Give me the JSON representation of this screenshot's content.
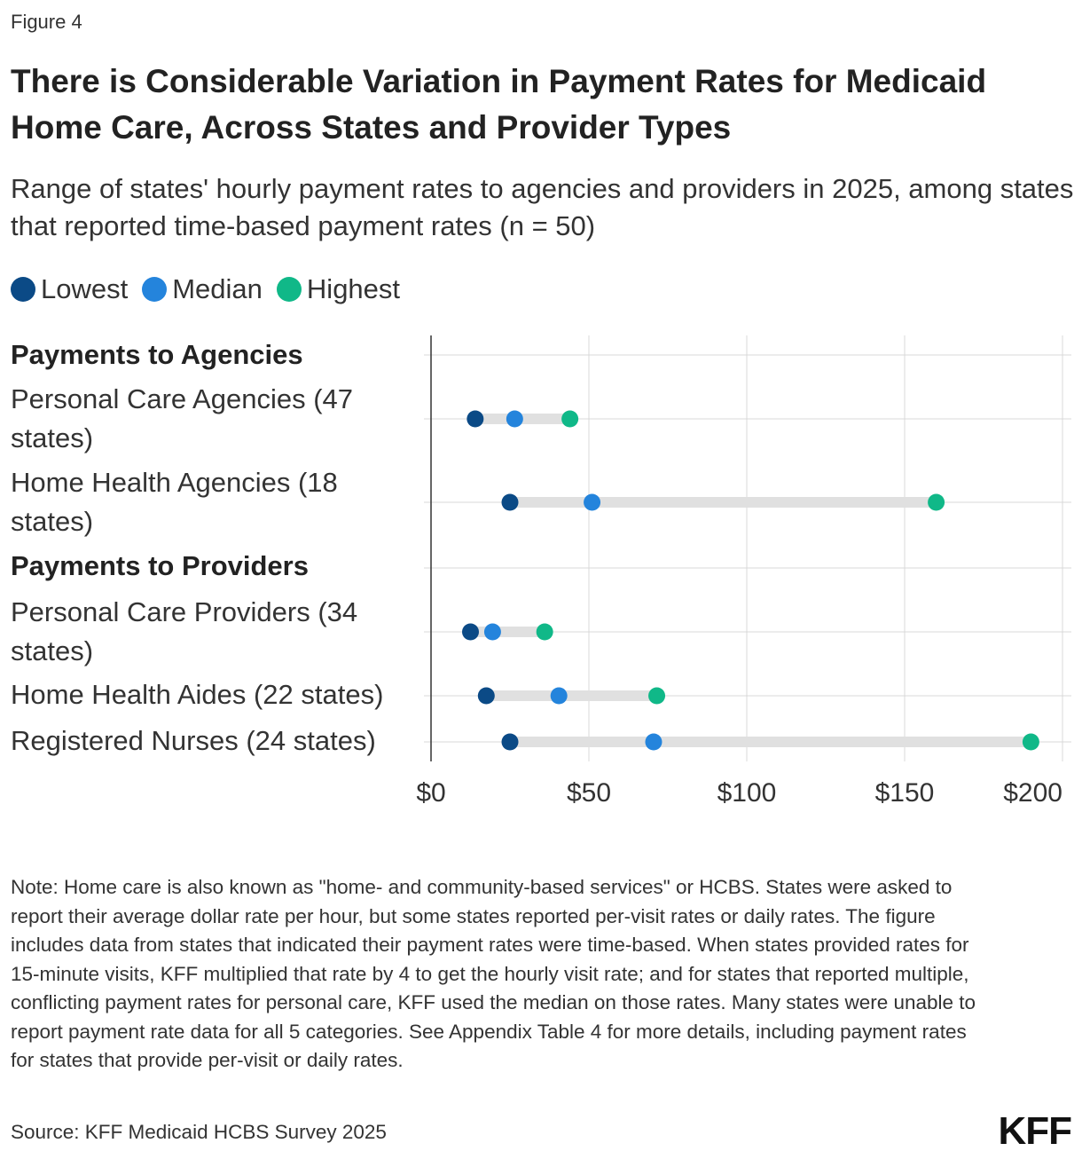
{
  "figure_label": "Figure 4",
  "title": "There is Considerable Variation in Payment Rates for Medicaid Home Care, Across States and Provider Types",
  "subtitle": "Range of states' hourly payment rates to agencies and providers in 2025, among states that reported time-based payment rates (n = 50)",
  "legend": [
    {
      "label": "Lowest",
      "color": "#0b4a86"
    },
    {
      "label": "Median",
      "color": "#2484dc"
    },
    {
      "label": "Highest",
      "color": "#10b888"
    }
  ],
  "groups": [
    {
      "label": "Payments to Agencies"
    },
    {
      "label": "Payments to Providers"
    }
  ],
  "chart_data": {
    "type": "dumbbell",
    "xlim": [
      0,
      200
    ],
    "x_ticks": [
      0,
      50,
      100,
      150,
      200
    ],
    "x_tick_labels": [
      "$0",
      "$50",
      "$100",
      "$150",
      "$200"
    ],
    "grid": true,
    "legend_placement": "top-left",
    "series_names": [
      "Lowest",
      "Median",
      "Highest"
    ],
    "categories": [
      {
        "label": "Personal Care Agencies (47 states)",
        "group": "Payments to Agencies",
        "lowest": 14,
        "median": 26.5,
        "highest": 44
      },
      {
        "label": "Home Health Agencies (18 states)",
        "group": "Payments to Agencies",
        "lowest": 25,
        "median": 51,
        "highest": 160
      },
      {
        "label": "Personal Care Providers (34 states)",
        "group": "Payments to Providers",
        "lowest": 12.5,
        "median": 19.5,
        "highest": 36
      },
      {
        "label": "Home Health Aides (22 states)",
        "group": "Payments to Providers",
        "lowest": 17.5,
        "median": 40.5,
        "highest": 71.5
      },
      {
        "label": "Registered Nurses (24 states)",
        "group": "Payments to Providers",
        "lowest": 25,
        "median": 70.5,
        "highest": 190
      }
    ]
  },
  "note": "Note: Home care is also known as \"home- and community-based services\" or HCBS. States were asked to report their average dollar rate per hour, but some states reported per-visit rates or daily rates. The figure includes data from states that indicated their payment rates were time-based. When states provided rates for 15-minute visits, KFF multiplied that rate by 4 to get the hourly visit rate; and for states that reported multiple, conflicting payment rates for personal care, KFF used the median on those rates. Many states were unable to report payment rate data for all 5 categories. See Appendix Table 4 for more details, including payment rates for states that provide per-visit or daily rates.",
  "source": "Source: KFF Medicaid HCBS Survey 2025",
  "logo_text": "KFF"
}
